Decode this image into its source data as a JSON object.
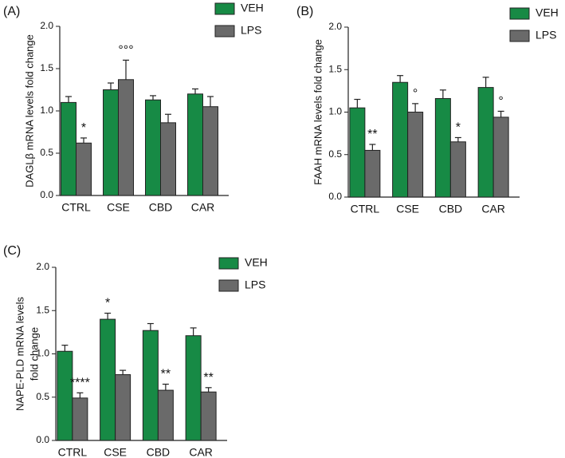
{
  "chart_data": [
    {
      "type": "bar",
      "label": "(A)",
      "ylabel": [
        "DAGLβ mRNA levels fold change"
      ],
      "categories": [
        "CTRL",
        "CSE",
        "CBD",
        "CAR"
      ],
      "series": [
        {
          "name": "VEH",
          "color": "#178a45",
          "values": [
            1.1,
            1.25,
            1.13,
            1.2
          ],
          "errors": [
            0.07,
            0.08,
            0.05,
            0.06
          ],
          "annotations": [
            null,
            null,
            null,
            null
          ]
        },
        {
          "name": "LPS",
          "color": "#6a6a6a",
          "values": [
            0.62,
            1.37,
            0.86,
            1.05
          ],
          "errors": [
            0.06,
            0.23,
            0.1,
            0.12
          ],
          "annotations": [
            "*",
            "°°°",
            null,
            null
          ]
        }
      ],
      "ylim": [
        0,
        2
      ],
      "yticks": [
        {
          "value": 0,
          "label": "0.0"
        },
        0.5,
        {
          "value": 1,
          "label": "1.0"
        },
        1.5,
        {
          "value": 2,
          "label": "2.0"
        }
      ]
    },
    {
      "type": "bar",
      "label": "(B)",
      "ylabel": [
        "FAAH mRNA levels fold change"
      ],
      "categories": [
        "CTRL",
        "CSE",
        "CBD",
        "CAR"
      ],
      "series": [
        {
          "name": "VEH",
          "color": "#178a45",
          "values": [
            1.05,
            1.35,
            1.16,
            1.29
          ],
          "errors": [
            0.1,
            0.08,
            0.1,
            0.12
          ],
          "annotations": [
            null,
            null,
            null,
            null
          ]
        },
        {
          "name": "LPS",
          "color": "#6a6a6a",
          "values": [
            0.55,
            1.0,
            0.65,
            0.94
          ],
          "errors": [
            0.07,
            0.1,
            0.05,
            0.07
          ],
          "annotations": [
            "**",
            "°",
            "*",
            "°"
          ]
        }
      ],
      "ylim": [
        0,
        2
      ],
      "yticks": [
        {
          "value": 0,
          "label": "0.0"
        },
        0.5,
        {
          "value": 1,
          "label": "1.0"
        },
        1.5,
        {
          "value": 2,
          "label": "2.0"
        }
      ]
    },
    {
      "type": "bar",
      "label": "(C)",
      "ylabel": [
        "NAPE-PLD mRNA levels",
        "fold change"
      ],
      "categories": [
        "CTRL",
        "CSE",
        "CBD",
        "CAR"
      ],
      "series": [
        {
          "name": "VEH",
          "color": "#178a45",
          "values": [
            1.03,
            1.4,
            1.27,
            1.21
          ],
          "errors": [
            0.07,
            0.07,
            0.08,
            0.09
          ],
          "annotations": [
            null,
            "*",
            null,
            null
          ]
        },
        {
          "name": "LPS",
          "color": "#6a6a6a",
          "values": [
            0.49,
            0.76,
            0.58,
            0.56
          ],
          "errors": [
            0.06,
            0.05,
            0.07,
            0.05
          ],
          "annotations": [
            "****",
            null,
            "**",
            "**"
          ]
        }
      ],
      "ylim": [
        0,
        2
      ],
      "yticks": [
        {
          "value": 0,
          "label": "0.0"
        },
        0.5,
        {
          "value": 1,
          "label": "1.0"
        },
        1.5,
        {
          "value": 2,
          "label": "2.0"
        }
      ]
    }
  ]
}
